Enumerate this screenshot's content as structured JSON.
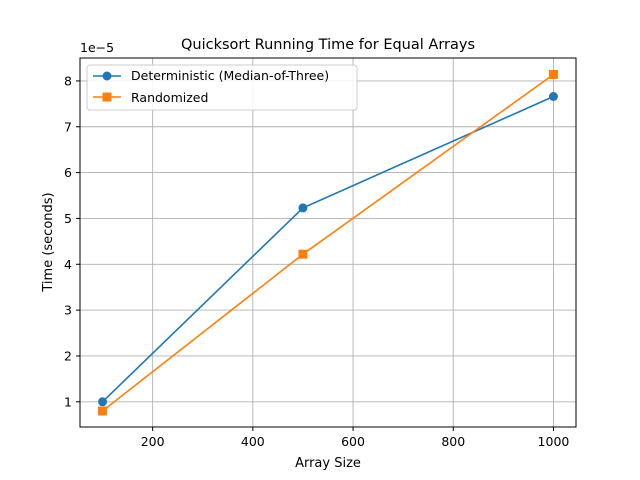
{
  "chart_data": {
    "type": "line",
    "title": "Quicksort Running Time for Equal Arrays",
    "xlabel": "Array Size",
    "ylabel": "Time (seconds)",
    "y_offset_text": "1e−5",
    "x": [
      100,
      500,
      1000
    ],
    "xlim": [
      55,
      1045
    ],
    "ylim": [
      0.45,
      8.5
    ],
    "y_scale_exponent": -5,
    "xticks": [
      200,
      400,
      600,
      800,
      1000
    ],
    "xtick_labels": [
      "200",
      "400",
      "600",
      "800",
      "1000"
    ],
    "yticks": [
      1,
      2,
      3,
      4,
      5,
      6,
      7,
      8
    ],
    "ytick_labels": [
      "1",
      "2",
      "3",
      "4",
      "5",
      "6",
      "7",
      "8"
    ],
    "grid": true,
    "legend_position": "top-left",
    "series": [
      {
        "name": "Deterministic (Median-of-Three)",
        "values": [
          1.0,
          5.23,
          7.66
        ],
        "color": "#1f77b4",
        "marker": "circle"
      },
      {
        "name": "Randomized",
        "values": [
          0.8,
          4.22,
          8.14
        ],
        "color": "#ff7f0e",
        "marker": "square"
      }
    ]
  }
}
